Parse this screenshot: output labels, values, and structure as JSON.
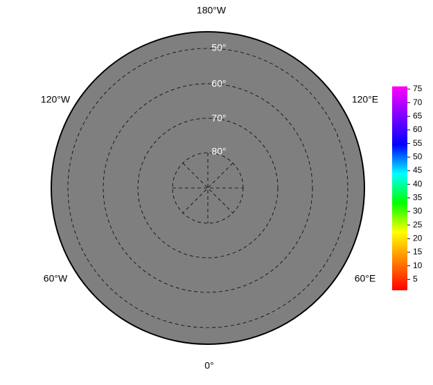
{
  "longitude_labels": [
    "180°W",
    "120°W",
    "120°E",
    "60°W",
    "60°E",
    "0°"
  ],
  "latitude_labels": [
    "50°",
    "60°",
    "70°",
    "80°"
  ],
  "colorbar": {
    "lim": [
      1,
      76
    ],
    "ticks": [
      5,
      10,
      15,
      20,
      25,
      30,
      35,
      40,
      45,
      50,
      55,
      60,
      65,
      70,
      75
    ],
    "colors": [
      "#ff0000",
      "#ff8000",
      "#ffff00",
      "#00ff00",
      "#00ffff",
      "#0000ff",
      "#8000ff",
      "#ff00ff"
    ]
  }
}
